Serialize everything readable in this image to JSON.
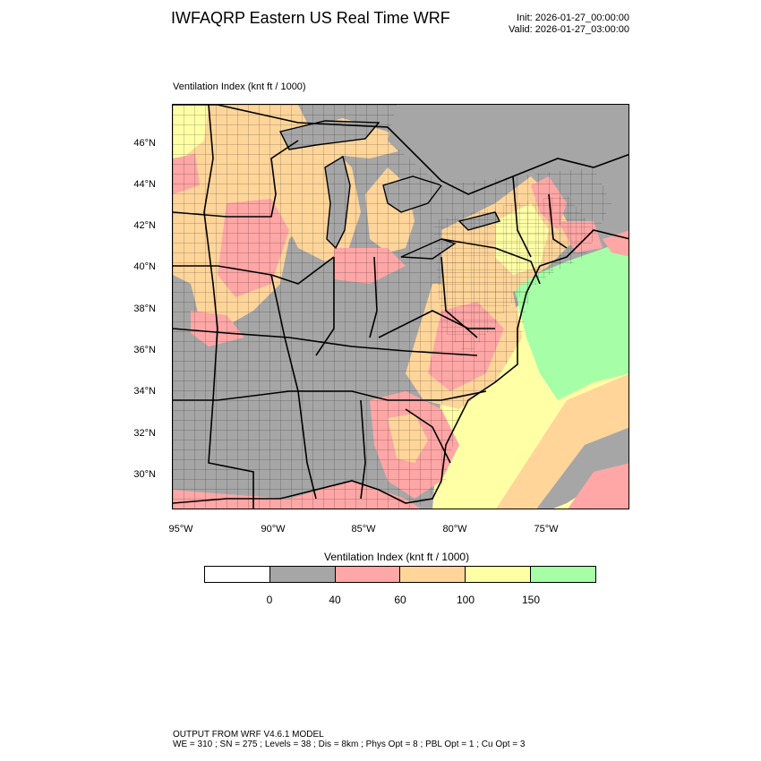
{
  "header": {
    "title": "IWFAQRP Eastern US Real Time WRF",
    "init": "Init: 2026-01-27_00:00:00",
    "valid": "Valid: 2026-01-27_03:00:00"
  },
  "plot": {
    "label": "Ventilation Index   (knt ft / 1000)"
  },
  "axes": {
    "lat_labels": [
      "46°N",
      "44°N",
      "42°N",
      "40°N",
      "38°N",
      "36°N",
      "34°N",
      "32°N",
      "30°N"
    ],
    "lon_labels": [
      "95°W",
      "90°W",
      "85°W",
      "80°W",
      "75°W"
    ]
  },
  "colorbar": {
    "title": "Ventilation Index  (knt ft / 1000)",
    "labels": [
      "0",
      "40",
      "60",
      "100",
      "150"
    ],
    "colors": [
      "#ffffff",
      "#a6a6a6",
      "#ffa6a6",
      "#ffd59a",
      "#ffffa6",
      "#a6ffa6"
    ]
  },
  "palette": {
    "ocean_land_background": "#a6a6a6",
    "county_lines": "#000000"
  },
  "footer": {
    "line1": "OUTPUT FROM WRF V4.6.1 MODEL",
    "line2": "WE = 310 ; SN = 275 ; Levels = 38 ; Dis = 8km ; Phys Opt = 8 ; PBL Opt = 1 ; Cu Opt = 3"
  }
}
